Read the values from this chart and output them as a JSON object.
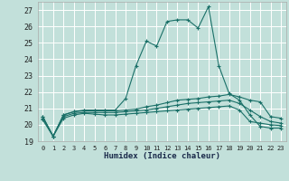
{
  "bg_color": "#c2e0da",
  "grid_color": "#ffffff",
  "line_color": "#1a7068",
  "xlabel": "Humidex (Indice chaleur)",
  "ylim": [
    19,
    27.5
  ],
  "xlim": [
    -0.5,
    23.5
  ],
  "yticks": [
    19,
    20,
    21,
    22,
    23,
    24,
    25,
    26,
    27
  ],
  "xticks": [
    0,
    1,
    2,
    3,
    4,
    5,
    6,
    7,
    8,
    9,
    10,
    11,
    12,
    13,
    14,
    15,
    16,
    17,
    18,
    19,
    20,
    21,
    22,
    23
  ],
  "series": [
    {
      "x": [
        0,
        1,
        2,
        3,
        4,
        5,
        6,
        7,
        8,
        9,
        10,
        11,
        12,
        13,
        14,
        15,
        16,
        17,
        18,
        19,
        20,
        21,
        22,
        23
      ],
      "y": [
        20.5,
        19.3,
        20.6,
        20.8,
        20.9,
        20.9,
        20.9,
        20.9,
        21.6,
        23.6,
        25.1,
        24.8,
        26.3,
        26.4,
        26.4,
        25.9,
        27.2,
        23.6,
        21.9,
        21.5,
        20.6,
        19.9,
        19.8,
        19.8
      ]
    },
    {
      "x": [
        0,
        1,
        2,
        3,
        4,
        5,
        6,
        7,
        8,
        9,
        10,
        11,
        12,
        13,
        14,
        15,
        16,
        17,
        18,
        19,
        20,
        21,
        22,
        23
      ],
      "y": [
        20.5,
        19.3,
        20.6,
        20.8,
        20.85,
        20.85,
        20.85,
        20.85,
        20.9,
        20.95,
        21.1,
        21.2,
        21.35,
        21.5,
        21.55,
        21.6,
        21.7,
        21.75,
        21.85,
        21.7,
        21.5,
        21.4,
        20.5,
        20.4
      ]
    },
    {
      "x": [
        0,
        1,
        2,
        3,
        4,
        5,
        6,
        7,
        8,
        9,
        10,
        11,
        12,
        13,
        14,
        15,
        16,
        17,
        18,
        19,
        20,
        21,
        22,
        23
      ],
      "y": [
        20.4,
        19.3,
        20.5,
        20.7,
        20.75,
        20.75,
        20.75,
        20.75,
        20.8,
        20.85,
        20.9,
        21.0,
        21.1,
        21.2,
        21.3,
        21.35,
        21.4,
        21.45,
        21.5,
        21.3,
        20.9,
        20.5,
        20.2,
        20.1
      ]
    },
    {
      "x": [
        0,
        1,
        2,
        3,
        4,
        5,
        6,
        7,
        8,
        9,
        10,
        11,
        12,
        13,
        14,
        15,
        16,
        17,
        18,
        19,
        20,
        21,
        22,
        23
      ],
      "y": [
        20.3,
        19.3,
        20.4,
        20.6,
        20.7,
        20.65,
        20.6,
        20.6,
        20.65,
        20.7,
        20.75,
        20.8,
        20.85,
        20.9,
        20.95,
        21.0,
        21.05,
        21.1,
        21.15,
        20.9,
        20.2,
        20.1,
        20.0,
        19.95
      ]
    }
  ]
}
